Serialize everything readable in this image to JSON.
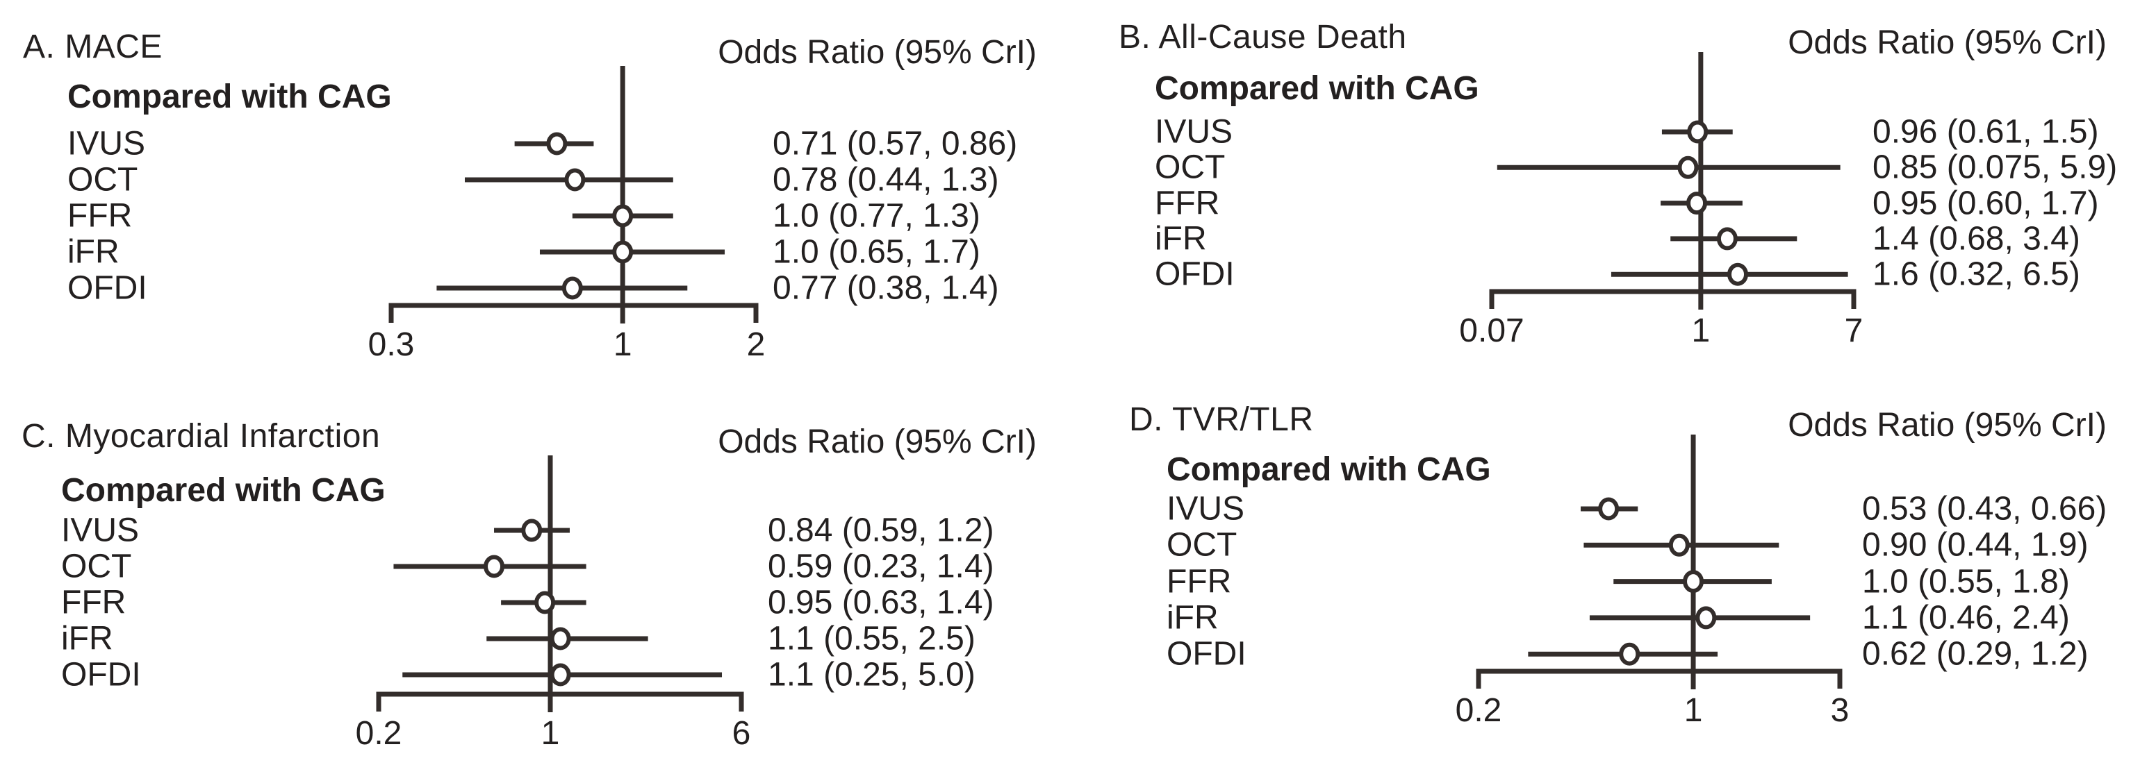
{
  "colors": {
    "text": "#232020",
    "line": "#332d2b",
    "marker_fill": "#ffffff"
  },
  "chart_data": [
    {
      "type": "scatter",
      "variant": "forest-plot",
      "panel": "A",
      "title": "A. MACE",
      "or_header": "Odds Ratio (95% CrI)",
      "comparison_label": "Compared with CAG",
      "x_scale": "log",
      "axis": {
        "min": 0.3,
        "max": 2,
        "ref_line": 1,
        "tick_values": [
          0.3,
          1,
          2
        ],
        "tick_labels": [
          "0.3",
          "1",
          "2"
        ]
      },
      "rows": [
        {
          "label": "IVUS",
          "or": 0.71,
          "ci_low": 0.57,
          "ci_high": 0.86,
          "or_text": "0.71 (0.57, 0.86)"
        },
        {
          "label": "OCT",
          "or": 0.78,
          "ci_low": 0.44,
          "ci_high": 1.3,
          "or_text": "0.78 (0.44, 1.3)"
        },
        {
          "label": "FFR",
          "or": 1.0,
          "ci_low": 0.77,
          "ci_high": 1.3,
          "or_text": "1.0 (0.77, 1.3)"
        },
        {
          "label": "iFR",
          "or": 1.0,
          "ci_low": 0.65,
          "ci_high": 1.7,
          "or_text": "1.0 (0.65, 1.7)"
        },
        {
          "label": "OFDI",
          "or": 0.77,
          "ci_low": 0.38,
          "ci_high": 1.4,
          "or_text": "0.77 (0.38, 1.4)"
        }
      ]
    },
    {
      "type": "scatter",
      "variant": "forest-plot",
      "panel": "B",
      "title": "B. All-Cause Death",
      "or_header": "Odds Ratio (95% CrI)",
      "comparison_label": "Compared with CAG",
      "x_scale": "log",
      "axis": {
        "min": 0.07,
        "max": 7,
        "ref_line": 1,
        "tick_values": [
          0.07,
          1,
          7
        ],
        "tick_labels": [
          "0.07",
          "1",
          "7"
        ]
      },
      "rows": [
        {
          "label": "IVUS",
          "or": 0.96,
          "ci_low": 0.61,
          "ci_high": 1.5,
          "or_text": "0.96 (0.61, 1.5)"
        },
        {
          "label": "OCT",
          "or": 0.85,
          "ci_low": 0.075,
          "ci_high": 5.9,
          "or_text": "0.85 (0.075, 5.9)"
        },
        {
          "label": "FFR",
          "or": 0.95,
          "ci_low": 0.6,
          "ci_high": 1.7,
          "or_text": "0.95 (0.60, 1.7)"
        },
        {
          "label": "iFR",
          "or": 1.4,
          "ci_low": 0.68,
          "ci_high": 3.4,
          "or_text": "1.4 (0.68, 3.4)"
        },
        {
          "label": "OFDI",
          "or": 1.6,
          "ci_low": 0.32,
          "ci_high": 6.5,
          "or_text": "1.6 (0.32, 6.5)"
        }
      ]
    },
    {
      "type": "scatter",
      "variant": "forest-plot",
      "panel": "C",
      "title": "C. Myocardial Infarction",
      "or_header": "Odds Ratio (95% CrI)",
      "comparison_label": "Compared with CAG",
      "x_scale": "log",
      "axis": {
        "min": 0.2,
        "max": 6,
        "ref_line": 1,
        "tick_values": [
          0.2,
          1,
          6
        ],
        "tick_labels": [
          "0.2",
          "1",
          "6"
        ]
      },
      "rows": [
        {
          "label": "IVUS",
          "or": 0.84,
          "ci_low": 0.59,
          "ci_high": 1.2,
          "or_text": "0.84 (0.59, 1.2)"
        },
        {
          "label": "OCT",
          "or": 0.59,
          "ci_low": 0.23,
          "ci_high": 1.4,
          "or_text": "0.59 (0.23, 1.4)"
        },
        {
          "label": "FFR",
          "or": 0.95,
          "ci_low": 0.63,
          "ci_high": 1.4,
          "or_text": "0.95 (0.63, 1.4)"
        },
        {
          "label": "iFR",
          "or": 1.1,
          "ci_low": 0.55,
          "ci_high": 2.5,
          "or_text": "1.1 (0.55, 2.5)"
        },
        {
          "label": "OFDI",
          "or": 1.1,
          "ci_low": 0.25,
          "ci_high": 5.0,
          "or_text": "1.1 (0.25, 5.0)"
        }
      ]
    },
    {
      "type": "scatter",
      "variant": "forest-plot",
      "panel": "D",
      "title": "D. TVR/TLR",
      "or_header": "Odds Ratio (95% CrI)",
      "comparison_label": "Compared with CAG",
      "x_scale": "log",
      "axis": {
        "min": 0.2,
        "max": 3,
        "ref_line": 1,
        "tick_values": [
          0.2,
          1,
          3
        ],
        "tick_labels": [
          "0.2",
          "1",
          "3"
        ]
      },
      "rows": [
        {
          "label": "IVUS",
          "or": 0.53,
          "ci_low": 0.43,
          "ci_high": 0.66,
          "or_text": "0.53 (0.43, 0.66)"
        },
        {
          "label": "OCT",
          "or": 0.9,
          "ci_low": 0.44,
          "ci_high": 1.9,
          "or_text": "0.90 (0.44, 1.9)"
        },
        {
          "label": "FFR",
          "or": 1.0,
          "ci_low": 0.55,
          "ci_high": 1.8,
          "or_text": "1.0 (0.55, 1.8)"
        },
        {
          "label": "iFR",
          "or": 1.1,
          "ci_low": 0.46,
          "ci_high": 2.4,
          "or_text": "1.1 (0.46, 2.4)"
        },
        {
          "label": "OFDI",
          "or": 0.62,
          "ci_low": 0.29,
          "ci_high": 1.2,
          "or_text": "0.62 (0.29, 1.2)"
        }
      ]
    }
  ]
}
